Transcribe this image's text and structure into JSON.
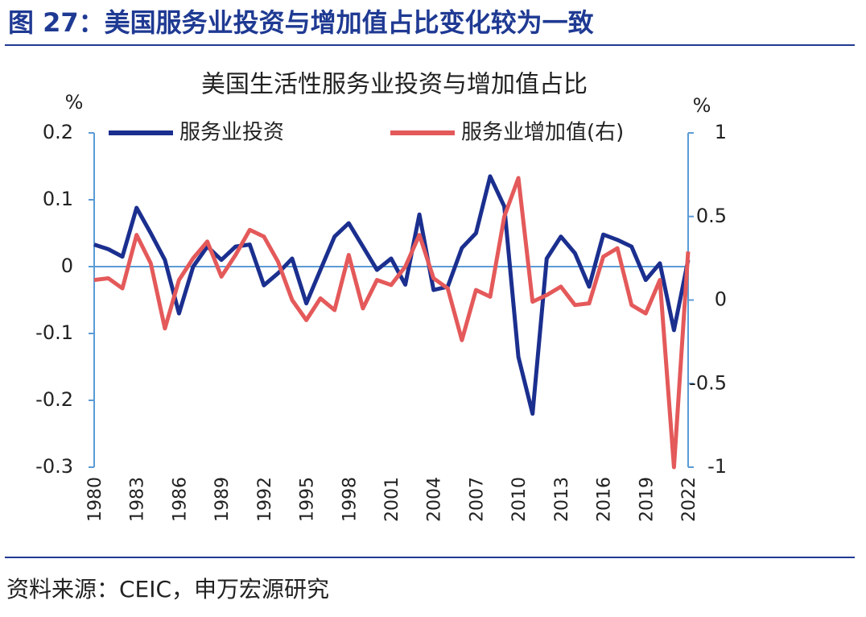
{
  "header": {
    "title": "图 27：美国服务业投资与增加值占比变化较为一致"
  },
  "chart_data": {
    "type": "line",
    "title": "美国生活性服务业投资与增加值占比",
    "y_label": "%",
    "y2_label": "%",
    "categories": [
      "1980",
      null,
      null,
      "1983",
      null,
      null,
      "1986",
      null,
      null,
      "1989",
      null,
      null,
      "1992",
      null,
      null,
      "1995",
      null,
      null,
      "1998",
      null,
      null,
      "2001",
      null,
      null,
      "2004",
      null,
      null,
      "2007",
      null,
      null,
      "2010",
      null,
      null,
      "2013",
      null,
      null,
      "2016",
      null,
      null,
      "2019",
      null,
      null,
      "2022"
    ],
    "series": [
      {
        "name": "服务业投资",
        "color": "#1b2f8f",
        "values": [
          0.033,
          0.026,
          0.015,
          0.088,
          0.05,
          0.01,
          -0.07,
          0.0,
          0.03,
          0.01,
          0.03,
          0.033,
          -0.028,
          -0.01,
          0.012,
          -0.055,
          -0.005,
          0.045,
          0.065,
          0.03,
          -0.005,
          0.012,
          -0.027,
          0.078,
          -0.035,
          -0.03,
          0.028,
          0.05,
          0.135,
          0.09,
          -0.135,
          -0.22,
          0.012,
          0.045,
          0.02,
          -0.03,
          0.048,
          0.04,
          0.03,
          -0.02,
          0.005,
          -0.095,
          0.01
        ]
      },
      {
        "name": "服务业增加值(右)",
        "color": "#e4595a",
        "axis": "y2",
        "values": [
          0.12,
          0.13,
          0.07,
          0.39,
          0.22,
          -0.17,
          0.12,
          0.25,
          0.35,
          0.14,
          0.27,
          0.42,
          0.38,
          0.23,
          0.0,
          -0.12,
          0.01,
          -0.06,
          0.27,
          -0.05,
          0.12,
          0.09,
          0.2,
          0.39,
          0.13,
          0.07,
          -0.24,
          0.06,
          0.02,
          0.5,
          0.73,
          -0.01,
          0.03,
          0.08,
          -0.03,
          -0.02,
          0.26,
          0.31,
          -0.03,
          -0.08,
          0.12,
          -1.0,
          0.29
        ]
      }
    ],
    "ylim": [
      -0.3,
      0.2
    ],
    "yticks": [
      -0.3,
      -0.2,
      -0.1,
      0,
      0.1,
      0.2
    ],
    "y2lim": [
      -1,
      1
    ],
    "y2ticks": [
      -1,
      -0.5,
      0,
      0.5,
      1
    ],
    "legend": "top"
  },
  "footer": {
    "source": "资料来源：CEIC，申万宏源研究"
  }
}
